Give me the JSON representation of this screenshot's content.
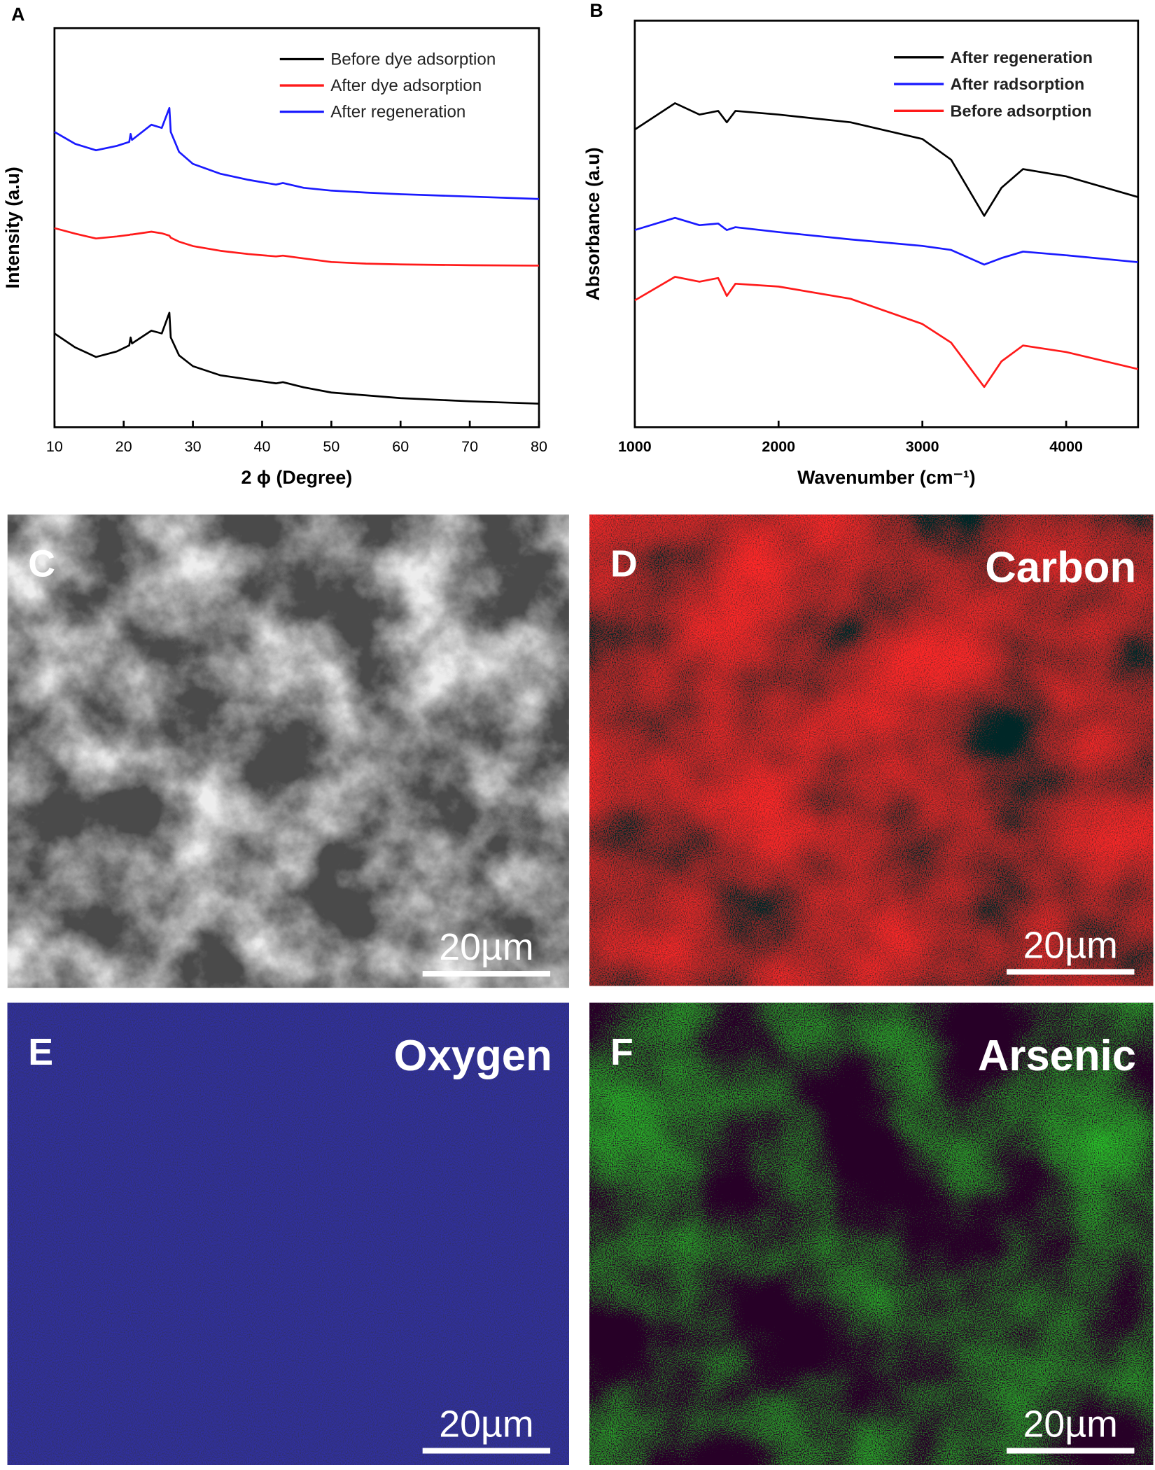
{
  "chart_data": [
    {
      "type": "line",
      "panel_label": "A",
      "xlabel": "2 ϕ (Degree)",
      "ylabel": "Intensity (a.u)",
      "x": [
        10,
        13,
        16,
        19,
        20.8,
        21,
        21.2,
        24,
        25.5,
        26.6,
        26.8,
        28,
        30,
        34,
        38,
        42,
        43,
        46,
        50,
        55,
        60,
        70,
        80
      ],
      "series": [
        {
          "name": "Before dye adsorption",
          "color": "#000000",
          "values": [
            23.5,
            20,
            17.6,
            19,
            20.5,
            22.5,
            21,
            24.2,
            23.5,
            28.7,
            22.5,
            18,
            15.3,
            13,
            12,
            11,
            11.3,
            10,
            8.7,
            8,
            7.3,
            6.5,
            5.9
          ]
        },
        {
          "name": "After dye adsorption",
          "color": "#ff1a1a",
          "values": [
            49.9,
            48.5,
            47.3,
            47.8,
            48.2,
            48.3,
            48.3,
            49,
            48.6,
            48,
            47.5,
            46.5,
            45.4,
            44.2,
            43.4,
            42.8,
            43,
            42.3,
            41.4,
            41,
            40.8,
            40.6,
            40.5
          ]
        },
        {
          "name": "After regeneration",
          "color": "#1a1aff",
          "values": [
            74,
            71,
            69.4,
            70.5,
            71.5,
            73.5,
            72,
            75.8,
            75,
            80,
            74,
            69,
            66,
            63.5,
            62,
            60.8,
            61.2,
            60,
            59.3,
            58.8,
            58.4,
            57.8,
            57.2
          ]
        }
      ],
      "xlim": [
        10,
        80
      ],
      "xticks": [
        10,
        20,
        30,
        40,
        50,
        60,
        70,
        80
      ],
      "ylim": [
        0,
        100
      ],
      "legend": "upper right"
    },
    {
      "type": "line",
      "panel_label": "B",
      "xlabel": "Wavenumber (cm⁻¹)",
      "ylabel": "Absorbance (a.u)",
      "x": [
        1000,
        1280,
        1450,
        1580,
        1640,
        1700,
        2000,
        2500,
        3000,
        3200,
        3430,
        3550,
        3700,
        4000,
        4500
      ],
      "series": [
        {
          "name": "After regeneration",
          "color": "#000000",
          "values": [
            73.2,
            79.7,
            76.9,
            77.8,
            75,
            77.8,
            76.9,
            75,
            70.9,
            65.8,
            52,
            58.9,
            63.5,
            61.7,
            56.6
          ]
        },
        {
          "name": "After radsorption",
          "color": "#1a1aff",
          "values": [
            48.5,
            51.5,
            49.7,
            50.1,
            48.5,
            49.2,
            48,
            46.2,
            44.6,
            43.6,
            40,
            41.6,
            43.2,
            42.3,
            40.6
          ]
        },
        {
          "name": "Before adsorption",
          "color": "#ff1a1a",
          "values": [
            31.2,
            37,
            35.8,
            36.7,
            32.3,
            35.3,
            34.6,
            31.6,
            25.4,
            20.8,
            9.9,
            16.2,
            20.1,
            18.5,
            14.3
          ]
        }
      ],
      "xlim": [
        1000,
        4500
      ],
      "xticks": [
        1000,
        2000,
        3000,
        4000
      ],
      "ylim": [
        0,
        100
      ],
      "legend": "upper right"
    }
  ],
  "panels": [
    {
      "label": "C",
      "scale_bar": "20µm"
    },
    {
      "label": "D",
      "element": "Carbon",
      "scale_bar": "20µm"
    },
    {
      "label": "E",
      "element": "Oxygen",
      "scale_bar": "20µm"
    },
    {
      "label": "F",
      "element": "Arsenic",
      "scale_bar": "20µm"
    }
  ]
}
